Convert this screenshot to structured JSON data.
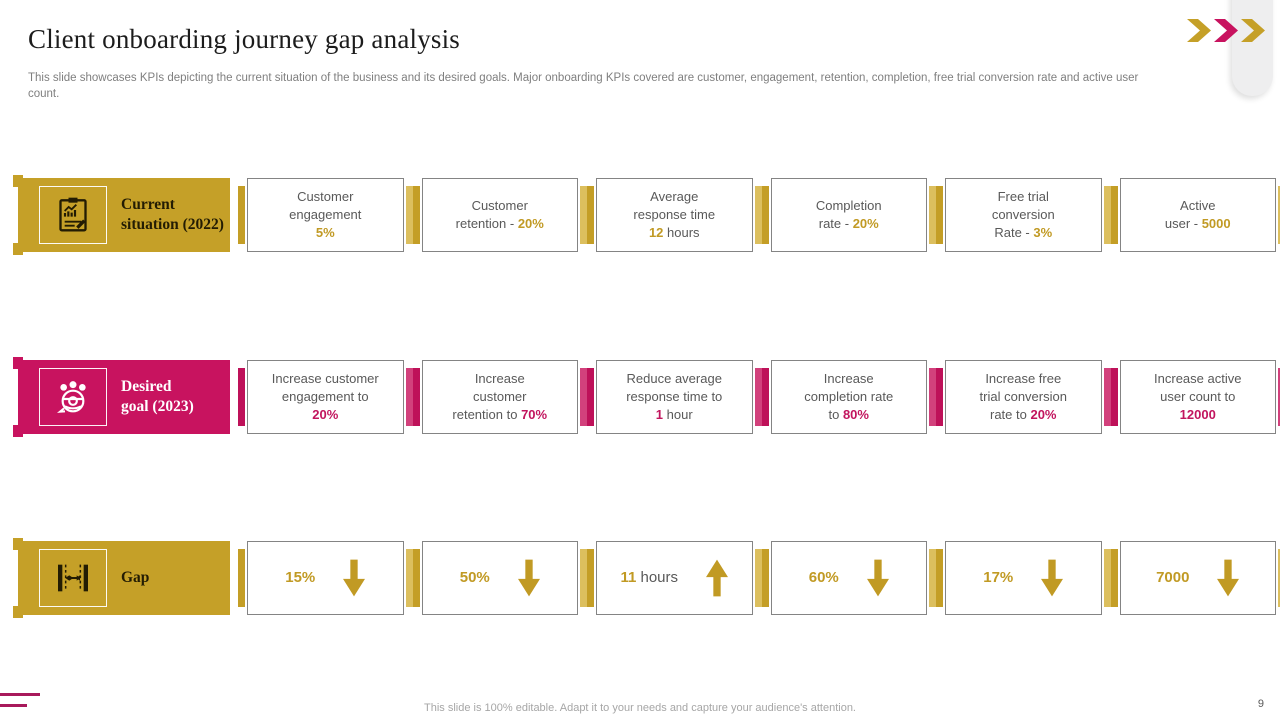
{
  "header": {
    "title": "Client onboarding journey gap analysis",
    "description": "This slide showcases KPIs depicting the current situation of the business and its desired goals. Major onboarding KPIs covered are customer, engagement, retention, completion, free trial conversion rate and active user count."
  },
  "decor": {
    "chevron_colors": [
      "#C5A028",
      "#C8135F",
      "#C5A028"
    ]
  },
  "colors": {
    "gold": "#C5A028",
    "pink": "#C8135F",
    "box_border": "#848484",
    "body_text": "#595959"
  },
  "rows": [
    {
      "label_lines": [
        "Current",
        "situation (2022)"
      ],
      "icon": "clipboard-chart-icon",
      "theme": "gold",
      "cells": [
        {
          "lines": [
            [
              {
                "t": "Customer"
              }
            ],
            [
              {
                "t": "engagement"
              }
            ],
            [
              {
                "t": "5%",
                "a": true
              }
            ]
          ]
        },
        {
          "lines": [
            [
              {
                "t": "Customer"
              }
            ],
            [
              {
                "t": "retention - "
              },
              {
                "t": "20%",
                "a": true
              }
            ]
          ]
        },
        {
          "lines": [
            [
              {
                "t": "Average"
              }
            ],
            [
              {
                "t": "response time"
              }
            ],
            [
              {
                "t": "12",
                "a": true
              },
              {
                "t": " hours"
              }
            ]
          ]
        },
        {
          "lines": [
            [
              {
                "t": "Completion"
              }
            ],
            [
              {
                "t": "rate - "
              },
              {
                "t": "20%",
                "a": true
              }
            ]
          ]
        },
        {
          "lines": [
            [
              {
                "t": "Free trial"
              }
            ],
            [
              {
                "t": "conversion"
              }
            ],
            [
              {
                "t": "Rate - "
              },
              {
                "t": "3%",
                "a": true
              }
            ]
          ]
        },
        {
          "lines": [
            [
              {
                "t": "Active"
              }
            ],
            [
              {
                "t": "user - "
              },
              {
                "t": "5000",
                "a": true
              }
            ]
          ]
        }
      ]
    },
    {
      "label_lines": [
        "Desired",
        "goal (2023)"
      ],
      "icon": "team-goal-icon",
      "theme": "pink",
      "cells": [
        {
          "lines": [
            [
              {
                "t": "Increase customer"
              }
            ],
            [
              {
                "t": "engagement to"
              }
            ],
            [
              {
                "t": "20%",
                "a": true
              }
            ]
          ]
        },
        {
          "lines": [
            [
              {
                "t": "Increase"
              }
            ],
            [
              {
                "t": "customer"
              }
            ],
            [
              {
                "t": "retention to "
              },
              {
                "t": "70%",
                "a": true
              }
            ]
          ]
        },
        {
          "lines": [
            [
              {
                "t": "Reduce average"
              }
            ],
            [
              {
                "t": "response time to"
              }
            ],
            [
              {
                "t": "1",
                "a": true
              },
              {
                "t": " hour"
              }
            ]
          ]
        },
        {
          "lines": [
            [
              {
                "t": "Increase"
              }
            ],
            [
              {
                "t": "completion rate"
              }
            ],
            [
              {
                "t": "to "
              },
              {
                "t": "80%",
                "a": true
              }
            ]
          ]
        },
        {
          "lines": [
            [
              {
                "t": "Increase free"
              }
            ],
            [
              {
                "t": "trial conversion"
              }
            ],
            [
              {
                "t": "rate to "
              },
              {
                "t": "20%",
                "a": true
              }
            ]
          ]
        },
        {
          "lines": [
            [
              {
                "t": "Increase active"
              }
            ],
            [
              {
                "t": "user count to"
              }
            ],
            [
              {
                "t": "12000",
                "a": true
              }
            ]
          ]
        }
      ]
    },
    {
      "label_lines": [
        "Gap"
      ],
      "icon": "gap-arrows-icon",
      "theme": "gold",
      "gap_row": true,
      "cells": [
        {
          "lines": [
            [
              {
                "t": "15%",
                "a": true
              }
            ]
          ],
          "arrow": "down"
        },
        {
          "lines": [
            [
              {
                "t": "50%",
                "a": true
              }
            ]
          ],
          "arrow": "down"
        },
        {
          "lines": [
            [
              {
                "t": "11",
                "a": true
              },
              {
                "t": " hours"
              }
            ]
          ],
          "arrow": "up"
        },
        {
          "lines": [
            [
              {
                "t": "60%",
                "a": true
              }
            ]
          ],
          "arrow": "down"
        },
        {
          "lines": [
            [
              {
                "t": "17%",
                "a": true
              }
            ]
          ],
          "arrow": "down"
        },
        {
          "lines": [
            [
              {
                "t": "7000",
                "a": true
              }
            ]
          ],
          "arrow": "down"
        }
      ]
    }
  ],
  "footer": {
    "note": "This slide is 100% editable. Adapt it to your needs and capture your audience's attention.",
    "page_number": "9"
  }
}
